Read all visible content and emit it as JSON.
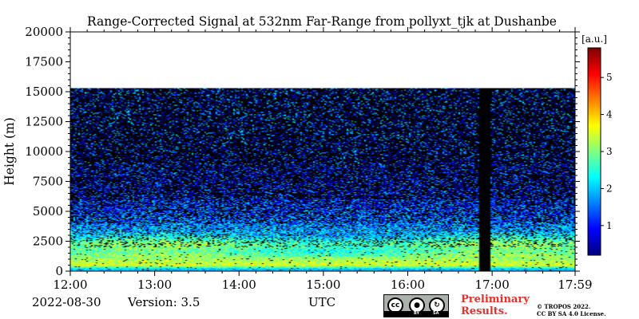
{
  "chart_data": {
    "type": "heatmap",
    "title": "Range-Corrected Signal at 532nm Far-Range from pollyxt_tjk at Dushanbe",
    "ylabel": "Height (m)",
    "xlabel": "UTC",
    "x_ticks": [
      "12:00",
      "13:00",
      "14:00",
      "15:00",
      "16:00",
      "17:00",
      "17:59"
    ],
    "y_ticks": [
      "0",
      "2500",
      "5000",
      "7500",
      "10000",
      "12500",
      "15000",
      "17500",
      "20000"
    ],
    "ylim": [
      0,
      20000
    ],
    "xlim": [
      "12:00",
      "17:59"
    ],
    "data_top_height_m": 15300,
    "gap_utc": [
      "16:51",
      "16:59"
    ],
    "colorbar": {
      "unit": "[a.u.]",
      "ticks": [
        "1",
        "2",
        "3",
        "4",
        "5"
      ],
      "range": [
        0.2,
        5.8
      ],
      "colormap": "jet"
    },
    "profile_layers": [
      {
        "height_m": 150,
        "value": 1.9
      },
      {
        "height_m": 500,
        "value": 3.5
      },
      {
        "height_m": 1000,
        "value": 3.2
      },
      {
        "height_m": 1600,
        "value": 2.7
      },
      {
        "height_m": 2300,
        "value": 2.9
      },
      {
        "height_m": 3000,
        "value": 2.0
      },
      {
        "height_m": 4000,
        "value": 1.6
      },
      {
        "height_m": 5000,
        "value": 1.3
      },
      {
        "height_m": 6500,
        "value": 1.0
      },
      {
        "height_m": 8000,
        "value": 0.85
      }
    ]
  },
  "footer": {
    "date": "2022-08-30",
    "version": "Version: 3.5",
    "xlabel": "UTC",
    "preliminary": "Preliminary\nResults.",
    "copyright": "© TROPOS 2022.\nCC BY SA 4.0 License.",
    "license_badge": {
      "cc": "cc",
      "by": "BY",
      "sa": "SA"
    }
  }
}
